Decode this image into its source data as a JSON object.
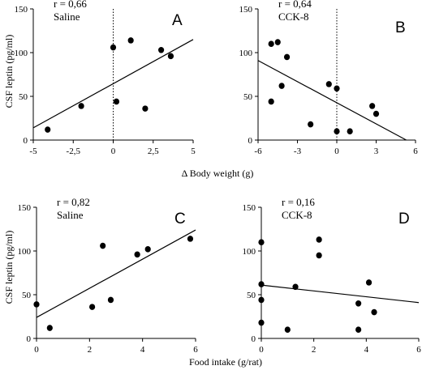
{
  "figure": {
    "shared_ylabel_top": "CSF leptin (pg/ml)",
    "shared_ylabel_bottom": "CSF leptin (pg/ml)",
    "xlabel_top": "Δ Body weight (g)",
    "xlabel_bottom": "Food intake (g/rat)"
  },
  "chart_data": [
    {
      "type": "scatter",
      "panel": "A",
      "annotation_r": "r = 0,66",
      "annotation_group": "Saline",
      "xlim": [
        -5,
        5
      ],
      "ylim": [
        0,
        150
      ],
      "xticks": [
        -5,
        -2.5,
        0,
        2.5,
        5
      ],
      "xtick_labels": [
        "-5",
        "-2,5",
        "0",
        "2,5",
        "5"
      ],
      "yticks": [
        0,
        50,
        100,
        150
      ],
      "ytick_labels": [
        "0",
        "50",
        "100",
        "150"
      ],
      "zero_line": "dotted vertical at x=0",
      "points": [
        {
          "x": -4.1,
          "y": 12
        },
        {
          "x": -2,
          "y": 39
        },
        {
          "x": 0,
          "y": 106
        },
        {
          "x": 0.2,
          "y": 44
        },
        {
          "x": 1.1,
          "y": 114
        },
        {
          "x": 2,
          "y": 36
        },
        {
          "x": 3,
          "y": 103
        },
        {
          "x": 3.6,
          "y": 96
        }
      ],
      "regression": {
        "x": [
          -5,
          5
        ],
        "y": [
          14,
          115
        ]
      }
    },
    {
      "type": "scatter",
      "panel": "B",
      "annotation_r": "r = 0,64",
      "annotation_group": "CCK-8",
      "xlim": [
        -6,
        6
      ],
      "ylim": [
        0,
        150
      ],
      "xticks": [
        -6,
        -3,
        0,
        3,
        6
      ],
      "xtick_labels": [
        "-6",
        "-3",
        "0",
        "3",
        "6"
      ],
      "yticks": [
        0,
        50,
        100,
        150
      ],
      "ytick_labels": [
        "0",
        "50",
        "100",
        "150"
      ],
      "zero_line": "dotted vertical at x=0",
      "points": [
        {
          "x": -5,
          "y": 110
        },
        {
          "x": -4.5,
          "y": 112
        },
        {
          "x": -3.8,
          "y": 95
        },
        {
          "x": -4.2,
          "y": 62
        },
        {
          "x": -5,
          "y": 44
        },
        {
          "x": -2,
          "y": 18
        },
        {
          "x": -0.6,
          "y": 64
        },
        {
          "x": 0,
          "y": 59
        },
        {
          "x": 0,
          "y": 10
        },
        {
          "x": 1,
          "y": 10
        },
        {
          "x": 2.7,
          "y": 39
        },
        {
          "x": 3,
          "y": 30
        }
      ],
      "regression": {
        "x": [
          -6,
          5.3
        ],
        "y": [
          91,
          0
        ]
      }
    },
    {
      "type": "scatter",
      "panel": "C",
      "annotation_r": "r = 0,82",
      "annotation_group": "Saline",
      "xlim": [
        0,
        6
      ],
      "ylim": [
        0,
        150
      ],
      "xticks": [
        0,
        2,
        4,
        6
      ],
      "xtick_labels": [
        "0",
        "2",
        "4",
        "6"
      ],
      "yticks": [
        0,
        50,
        100,
        150
      ],
      "ytick_labels": [
        "0",
        "50",
        "100",
        "150"
      ],
      "points": [
        {
          "x": 0,
          "y": 39
        },
        {
          "x": 0.5,
          "y": 12
        },
        {
          "x": 2.1,
          "y": 36
        },
        {
          "x": 2.5,
          "y": 106
        },
        {
          "x": 2.8,
          "y": 44
        },
        {
          "x": 3.8,
          "y": 96
        },
        {
          "x": 4.2,
          "y": 102
        },
        {
          "x": 5.8,
          "y": 114
        }
      ],
      "regression": {
        "x": [
          0,
          6
        ],
        "y": [
          24,
          124
        ]
      }
    },
    {
      "type": "scatter",
      "panel": "D",
      "annotation_r": "r = 0,16",
      "annotation_group": "CCK-8",
      "xlim": [
        0,
        6
      ],
      "ylim": [
        0,
        150
      ],
      "xticks": [
        0,
        2,
        4,
        6
      ],
      "xtick_labels": [
        "0",
        "2",
        "4",
        "6"
      ],
      "yticks": [
        0,
        50,
        100,
        150
      ],
      "ytick_labels": [
        "0",
        "50",
        "100",
        "150"
      ],
      "points": [
        {
          "x": 0,
          "y": 110
        },
        {
          "x": 0,
          "y": 62
        },
        {
          "x": 0,
          "y": 44
        },
        {
          "x": 0,
          "y": 18
        },
        {
          "x": 1,
          "y": 10
        },
        {
          "x": 1.3,
          "y": 59
        },
        {
          "x": 2.2,
          "y": 113
        },
        {
          "x": 2.2,
          "y": 95
        },
        {
          "x": 3.7,
          "y": 40
        },
        {
          "x": 3.7,
          "y": 10
        },
        {
          "x": 4.1,
          "y": 64
        },
        {
          "x": 4.3,
          "y": 30
        }
      ],
      "regression": {
        "x": [
          0,
          6
        ],
        "y": [
          61,
          41
        ]
      }
    }
  ]
}
